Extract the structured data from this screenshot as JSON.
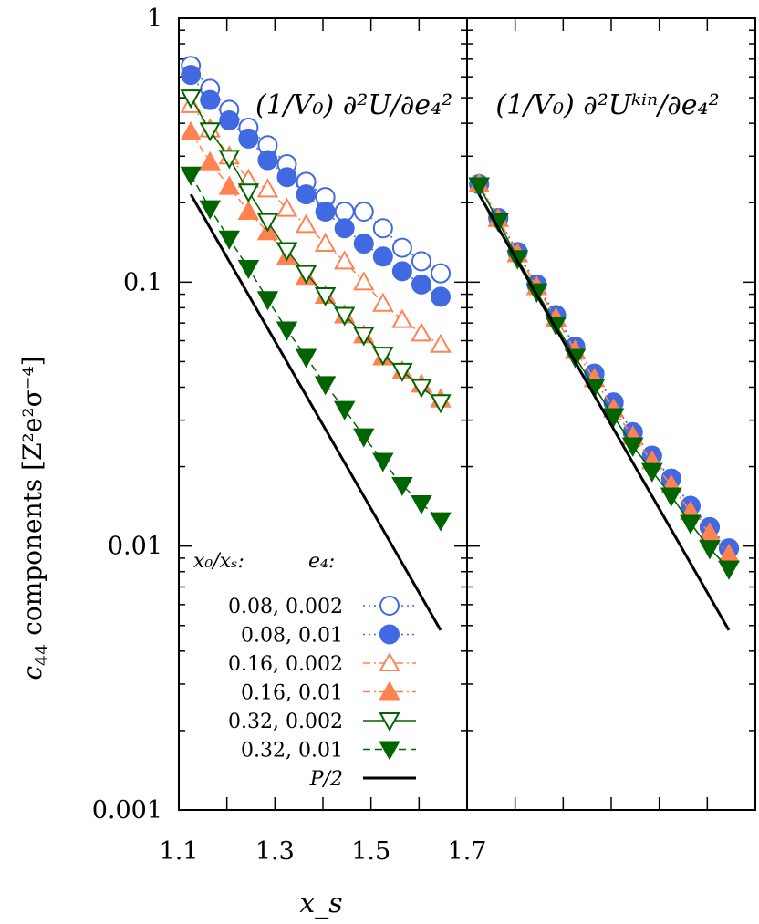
{
  "chart_data": {
    "type": "scatter",
    "yscale": "log",
    "ylim": [
      0.001,
      1
    ],
    "yticks": [
      {
        "v": 1,
        "label": "1"
      },
      {
        "v": 0.1,
        "label": "0.1"
      },
      {
        "v": 0.01,
        "label": "0.01"
      },
      {
        "v": 0.001,
        "label": "0.001"
      }
    ],
    "xlabel": "x_s",
    "ylabel_text": "c",
    "ylabel_sub": "44",
    "ylabel_rest": " components  [Z²e²σ⁻⁴]",
    "xtick_labels": [
      {
        "v": 1.1,
        "label": "1.1"
      },
      {
        "v": 1.3,
        "label": "1.3"
      },
      {
        "v": 1.5,
        "label": "1.5"
      },
      {
        "v": 1.7,
        "label": "1.7"
      }
    ],
    "panels": [
      {
        "annotation": "(1/V₀) ∂²U/∂e₄²",
        "xlim": [
          1.1,
          1.7
        ],
        "series": [
          {
            "name": "0.08,  0.002",
            "color": "#4169e1",
            "marker": "circle-open",
            "dash": "dot",
            "x": [
              1.125,
              1.165,
              1.205,
              1.245,
              1.285,
              1.325,
              1.365,
              1.405,
              1.445,
              1.485,
              1.525,
              1.565,
              1.605,
              1.645
            ],
            "y": [
              0.66,
              0.54,
              0.45,
              0.385,
              0.33,
              0.28,
              0.24,
              0.21,
              0.185,
              0.185,
              0.16,
              0.135,
              0.12,
              0.108
            ]
          },
          {
            "name": "0.08,  0.01",
            "color": "#4169e1",
            "marker": "circle-filled",
            "dash": "dot",
            "x": [
              1.125,
              1.165,
              1.205,
              1.245,
              1.285,
              1.325,
              1.365,
              1.405,
              1.445,
              1.485,
              1.525,
              1.565,
              1.605,
              1.645
            ],
            "y": [
              0.61,
              0.49,
              0.41,
              0.35,
              0.29,
              0.25,
              0.215,
              0.185,
              0.16,
              0.14,
              0.125,
              0.11,
              0.098,
              0.088
            ]
          },
          {
            "name": "0.16,  0.002",
            "color": "#ff8250",
            "marker": "triangle-open",
            "dash": "dashdot",
            "x": [
              1.125,
              1.165,
              1.205,
              1.245,
              1.285,
              1.325,
              1.365,
              1.405,
              1.445,
              1.485,
              1.525,
              1.565,
              1.605,
              1.645
            ],
            "y": [
              0.47,
              0.38,
              0.3,
              0.245,
              0.225,
              0.19,
              0.165,
              0.14,
              0.12,
              0.1,
              0.083,
              0.072,
              0.064,
              0.058
            ]
          },
          {
            "name": "0.16,  0.01",
            "color": "#ff8250",
            "marker": "triangle-filled",
            "dash": "dashdot",
            "x": [
              1.125,
              1.165,
              1.205,
              1.245,
              1.285,
              1.325,
              1.365,
              1.405,
              1.445,
              1.485,
              1.525,
              1.565,
              1.605,
              1.645
            ],
            "y": [
              0.37,
              0.285,
              0.23,
              0.185,
              0.155,
              0.125,
              0.105,
              0.089,
              0.075,
              0.063,
              0.052,
              0.046,
              0.041,
              0.036
            ]
          },
          {
            "name": "0.32,  0.002",
            "color": "#006400",
            "marker": "triangledown-open",
            "dash": "solid",
            "x": [
              1.125,
              1.165,
              1.205,
              1.245,
              1.285,
              1.325,
              1.365,
              1.405,
              1.445,
              1.485,
              1.525,
              1.565,
              1.605,
              1.645
            ],
            "y": [
              0.5,
              0.375,
              0.295,
              0.22,
              0.17,
              0.132,
              0.108,
              0.089,
              0.075,
              0.063,
              0.053,
              0.046,
              0.04,
              0.035
            ]
          },
          {
            "name": "0.32,  0.01",
            "color": "#006400",
            "marker": "triangledown-filled",
            "dash": "dash",
            "x": [
              1.125,
              1.165,
              1.205,
              1.245,
              1.285,
              1.325,
              1.365,
              1.405,
              1.445,
              1.485,
              1.525,
              1.565,
              1.605,
              1.645
            ],
            "y": [
              0.255,
              0.19,
              0.146,
              0.113,
              0.086,
              0.066,
              0.052,
              0.041,
              0.033,
              0.026,
              0.021,
              0.017,
              0.0145,
              0.0125
            ]
          },
          {
            "name": "P/2",
            "color": "#000000",
            "marker": "none",
            "dash": "solid",
            "x": [
              1.125,
              1.645
            ],
            "y": [
              0.215,
              0.0048
            ]
          }
        ]
      },
      {
        "annotation": "(1/V₀) ∂²Uᵏⁱⁿ/∂e₄²",
        "xlim": [
          1.1,
          1.7
        ],
        "series": [
          {
            "name": "0.08,  0.002",
            "color": "#4169e1",
            "marker": "circle-open",
            "dash": "dot",
            "x": [
              1.125,
              1.165,
              1.205,
              1.245,
              1.285,
              1.325,
              1.365,
              1.405,
              1.445,
              1.485,
              1.525,
              1.565,
              1.605,
              1.645
            ],
            "y": [
              0.235,
              0.175,
              0.13,
              0.098,
              0.075,
              0.057,
              0.045,
              0.035,
              0.027,
              0.022,
              0.018,
              0.0142,
              0.0118,
              0.0098
            ]
          },
          {
            "name": "0.08,  0.01",
            "color": "#4169e1",
            "marker": "circle-filled",
            "dash": "dot",
            "x": [
              1.125,
              1.165,
              1.205,
              1.245,
              1.285,
              1.325,
              1.365,
              1.405,
              1.445,
              1.485,
              1.525,
              1.565,
              1.605,
              1.645
            ],
            "y": [
              0.235,
              0.175,
              0.13,
              0.098,
              0.075,
              0.057,
              0.045,
              0.035,
              0.027,
              0.022,
              0.018,
              0.0142,
              0.0118,
              0.0098
            ]
          },
          {
            "name": "0.16,  0.002",
            "color": "#ff8250",
            "marker": "triangle-open",
            "dash": "dashdot",
            "x": [
              1.125,
              1.165,
              1.205,
              1.245,
              1.285,
              1.325,
              1.365,
              1.405,
              1.445,
              1.485,
              1.525,
              1.565,
              1.605,
              1.645
            ],
            "y": [
              0.235,
              0.174,
              0.128,
              0.096,
              0.073,
              0.055,
              0.043,
              0.033,
              0.026,
              0.021,
              0.017,
              0.0135,
              0.0112,
              0.0093
            ]
          },
          {
            "name": "0.16,  0.01",
            "color": "#ff8250",
            "marker": "triangle-filled",
            "dash": "dashdot",
            "x": [
              1.125,
              1.165,
              1.205,
              1.245,
              1.285,
              1.325,
              1.365,
              1.405,
              1.445,
              1.485,
              1.525,
              1.565,
              1.605,
              1.645
            ],
            "y": [
              0.235,
              0.174,
              0.128,
              0.096,
              0.073,
              0.055,
              0.043,
              0.033,
              0.026,
              0.021,
              0.017,
              0.0135,
              0.0112,
              0.0093
            ]
          },
          {
            "name": "0.32,  0.002",
            "color": "#006400",
            "marker": "triangledown-open",
            "dash": "solid",
            "x": [
              1.125,
              1.165,
              1.205,
              1.245,
              1.285,
              1.325,
              1.365,
              1.405,
              1.445,
              1.485,
              1.525,
              1.565,
              1.605,
              1.645
            ],
            "y": [
              0.232,
              0.17,
              0.123,
              0.092,
              0.069,
              0.052,
              0.04,
              0.031,
              0.024,
              0.0192,
              0.0155,
              0.0122,
              0.0098,
              0.0082
            ]
          },
          {
            "name": "0.32,  0.01",
            "color": "#006400",
            "marker": "triangledown-filled",
            "dash": "dash",
            "x": [
              1.125,
              1.165,
              1.205,
              1.245,
              1.285,
              1.325,
              1.365,
              1.405,
              1.445,
              1.485,
              1.525,
              1.565,
              1.605,
              1.645
            ],
            "y": [
              0.232,
              0.17,
              0.123,
              0.092,
              0.069,
              0.052,
              0.04,
              0.031,
              0.024,
              0.0192,
              0.0155,
              0.0122,
              0.0098,
              0.0082
            ]
          },
          {
            "name": "P/2",
            "color": "#000000",
            "marker": "none",
            "dash": "solid",
            "x": [
              1.125,
              1.645
            ],
            "y": [
              0.215,
              0.0048
            ]
          }
        ]
      }
    ],
    "legend": {
      "placement": "bottom-left",
      "header_left": "x₀/xₛ:",
      "header_right": "e₄:"
    }
  }
}
